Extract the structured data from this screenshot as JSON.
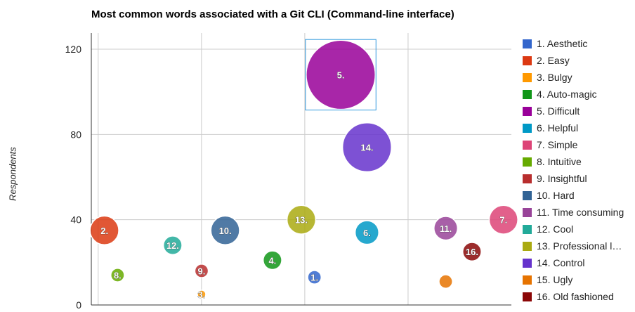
{
  "chart_data": {
    "type": "scatter",
    "title": "Most common words associated with a Git CLI (Command-line interface)",
    "xlabel": "",
    "ylabel": "Respondents",
    "ylim": [
      0,
      120
    ],
    "yticks": [
      "0",
      "40",
      "80",
      "120"
    ],
    "grid": true,
    "legend_position": "right",
    "series": [
      {
        "name": "1. Aesthetic",
        "label": "1.",
        "x": 8.5,
        "y": 13,
        "size": 1,
        "color": "#3366cc"
      },
      {
        "name": "2. Easy",
        "label": "2.",
        "x": 0.5,
        "y": 35,
        "size": 4,
        "color": "#dc3912"
      },
      {
        "name": "3. Bulgy",
        "label": "3.",
        "x": 4.2,
        "y": 5,
        "size": 0,
        "color": "#ff9900"
      },
      {
        "name": "4. Auto-magic",
        "label": "4.",
        "x": 6.9,
        "y": 21,
        "size": 2,
        "color": "#109618"
      },
      {
        "name": "5. Difficult",
        "label": "5.",
        "x": 9.5,
        "y": 108,
        "size": 12,
        "color": "#990099"
      },
      {
        "name": "6. Helpful",
        "label": "6.",
        "x": 10.5,
        "y": 34,
        "size": 3,
        "color": "#0099c6"
      },
      {
        "name": "7. Simple",
        "label": "7.",
        "x": 15.7,
        "y": 40,
        "size": 4,
        "color": "#dd4477"
      },
      {
        "name": "8. Intuitive",
        "label": "8.",
        "x": 1.0,
        "y": 14,
        "size": 1,
        "color": "#66aa00"
      },
      {
        "name": "9. Insightful",
        "label": "9.",
        "x": 4.2,
        "y": 16,
        "size": 1,
        "color": "#b82e2e"
      },
      {
        "name": "10. Hard",
        "label": "10.",
        "x": 5.1,
        "y": 35,
        "size": 4,
        "color": "#316395"
      },
      {
        "name": "11. Time consuming",
        "label": "11.",
        "x": 13.5,
        "y": 36,
        "size": 3,
        "color": "#994499"
      },
      {
        "name": "12. Cool",
        "label": "12.",
        "x": 3.1,
        "y": 28,
        "size": 2,
        "color": "#22aa99"
      },
      {
        "name": "13. Professional l…",
        "label": "13.",
        "x": 8.0,
        "y": 40,
        "size": 4,
        "color": "#aaaa11"
      },
      {
        "name": "14. Control",
        "label": "14.",
        "x": 10.5,
        "y": 74,
        "size": 8,
        "color": "#6633cc"
      },
      {
        "name": "15. Ugly",
        "label": "",
        "x": 13.5,
        "y": 11,
        "size": 1,
        "color": "#e67300"
      },
      {
        "name": "16. Old fashioned",
        "label": "16.",
        "x": 14.5,
        "y": 25,
        "size": 2,
        "color": "#8b0707"
      }
    ]
  }
}
